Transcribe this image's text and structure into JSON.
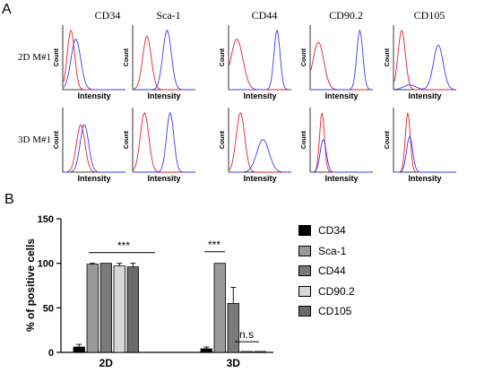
{
  "panel_labels": [
    "A",
    "B"
  ],
  "flow": {
    "columns": [
      "CD34",
      "Sca-1",
      "CD44",
      "CD90.2",
      "CD105"
    ],
    "rows": [
      "2D M#1",
      "3D M#1"
    ],
    "xlabel": "Intensity",
    "ylabel": "Count",
    "colors": {
      "control": "#e8202a",
      "marker": "#3a3aff"
    }
  },
  "chart_data": {
    "type": "bar",
    "categories": [
      "2D",
      "3D"
    ],
    "ylabel": "% of positive cells",
    "xlabel": "",
    "ylim": [
      0,
      150
    ],
    "yticks": [
      0,
      50,
      100,
      150
    ],
    "series": [
      {
        "name": "CD34",
        "values": [
          6,
          4
        ],
        "errors": [
          3,
          2
        ],
        "color": "#000000"
      },
      {
        "name": "Sca-1",
        "values": [
          99,
          100
        ],
        "errors": [
          1,
          0.5
        ],
        "color": "#9a9a9a"
      },
      {
        "name": "CD44",
        "values": [
          100,
          55
        ],
        "errors": [
          0.5,
          18
        ],
        "color": "#7a7a7a"
      },
      {
        "name": "CD90.2",
        "values": [
          97,
          1
        ],
        "errors": [
          3,
          0.5
        ],
        "color": "#d8d8d8"
      },
      {
        "name": "CD105",
        "values": [
          96,
          1
        ],
        "errors": [
          4,
          0.5
        ],
        "color": "#6a6a6a"
      }
    ],
    "annotations": [
      {
        "text": "***",
        "group": "2D"
      },
      {
        "text": "***",
        "group": "3D"
      },
      {
        "text": "n.s",
        "group": "3D"
      }
    ]
  }
}
